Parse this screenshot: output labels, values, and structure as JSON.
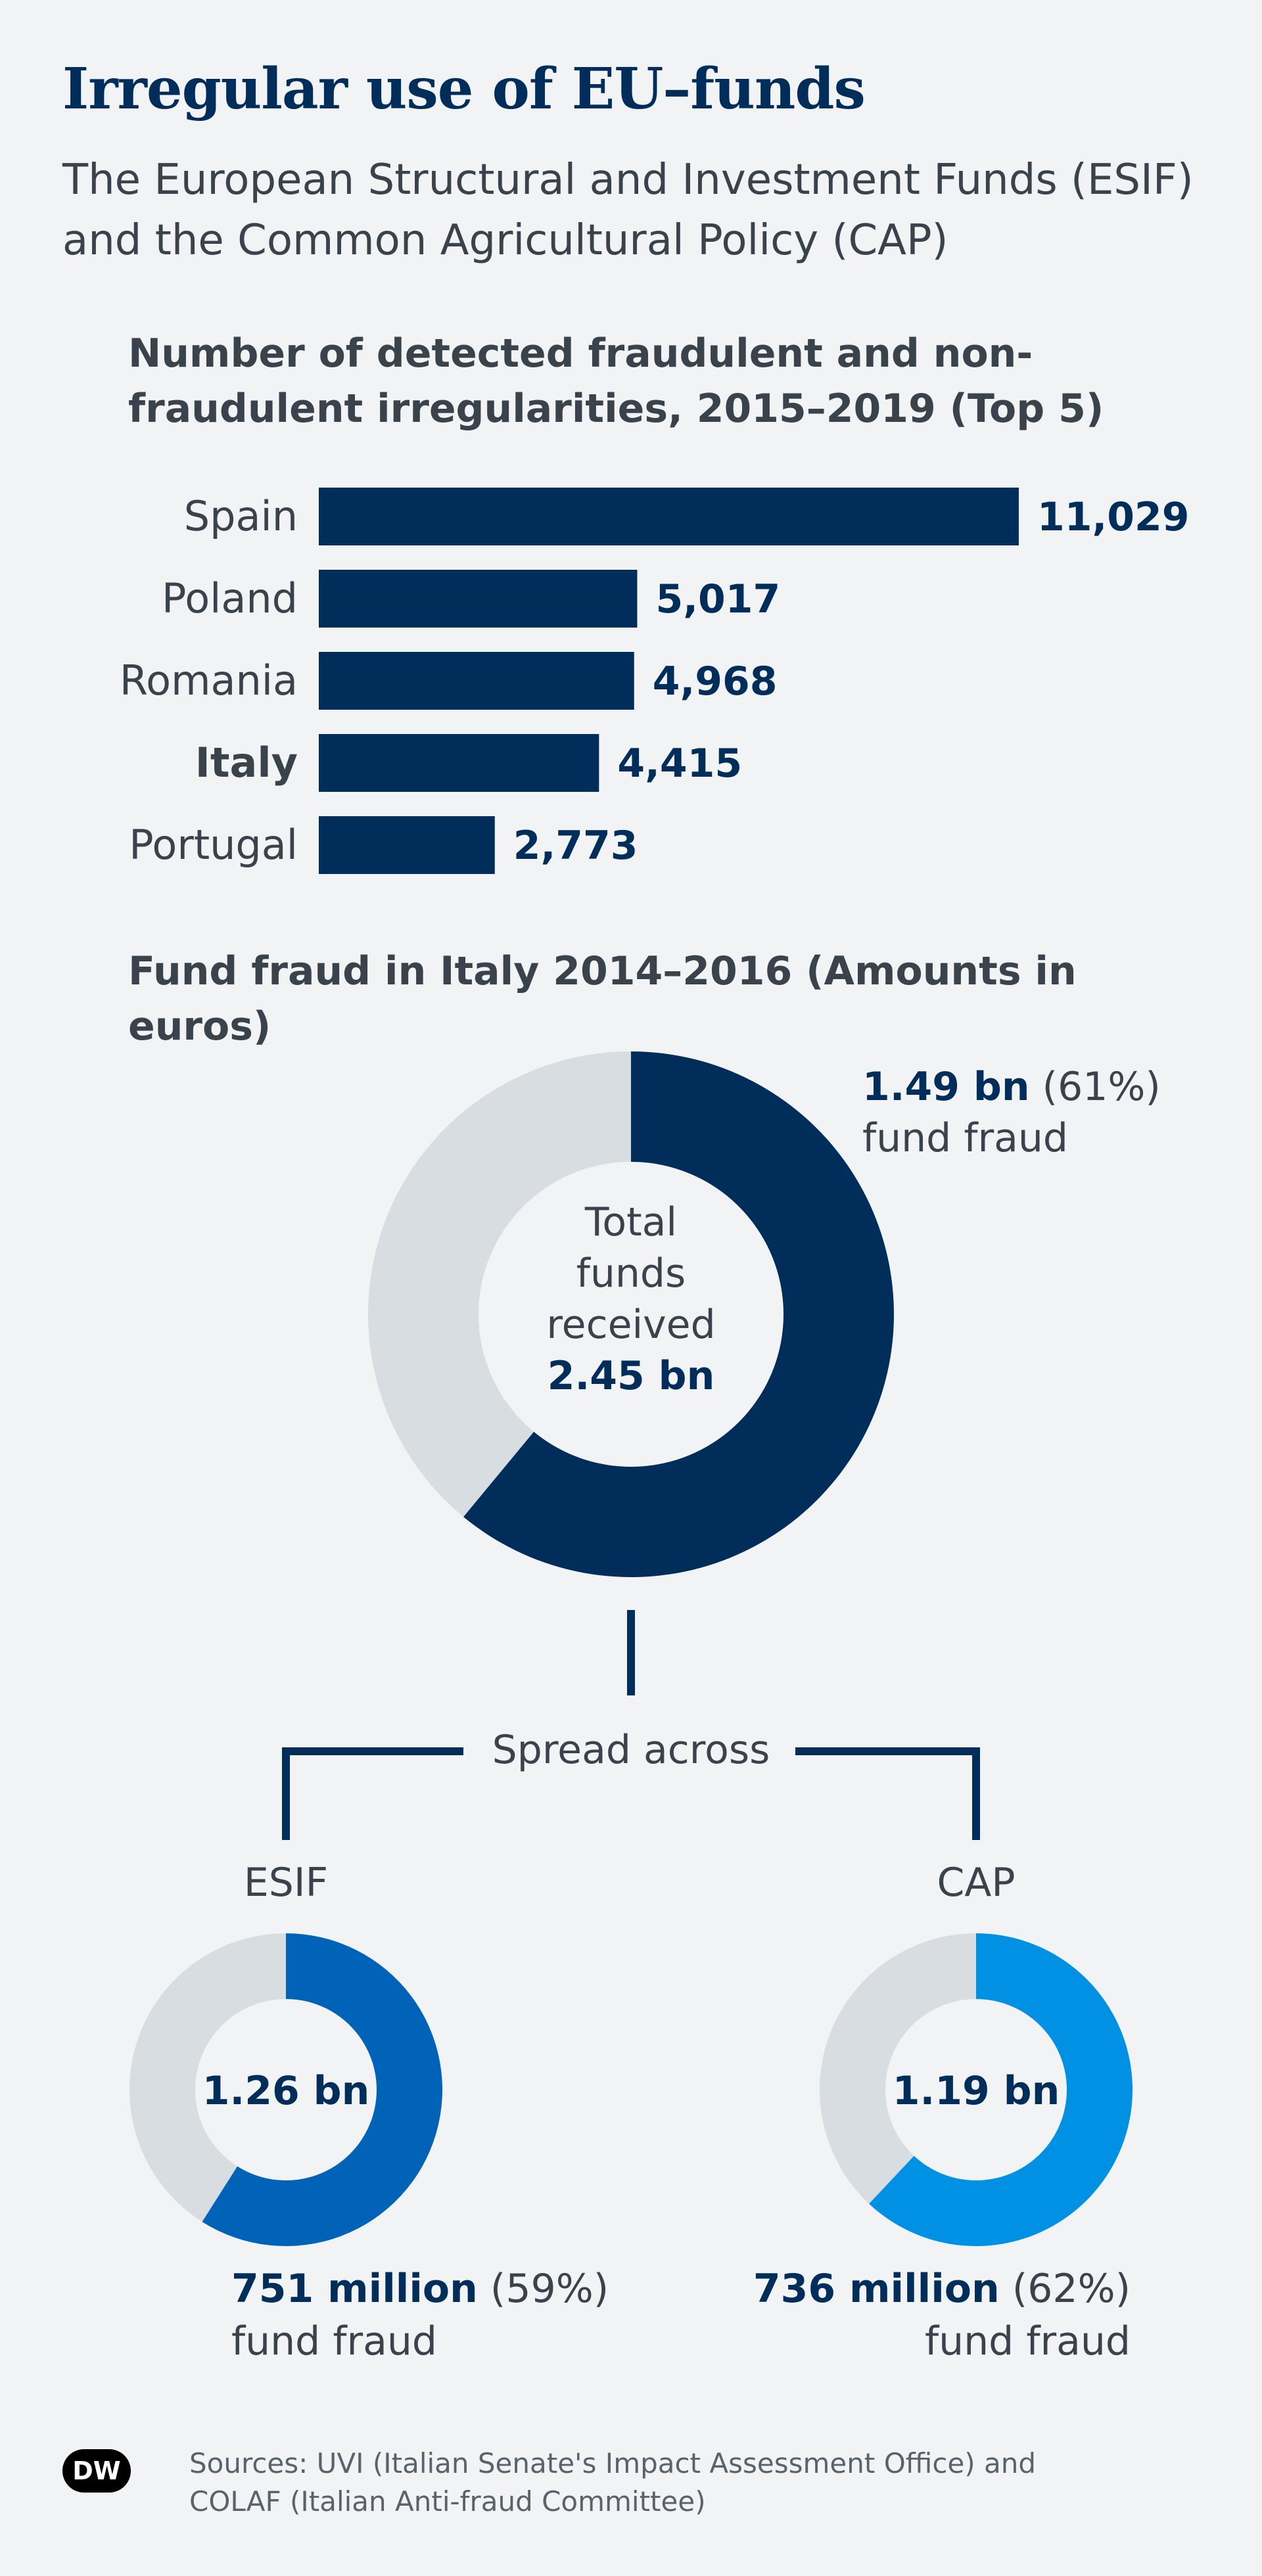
{
  "title": "Irregular use of EU–funds",
  "subtitle": "The European Structural and Investment Funds (ESIF) and the Common Agricultural Policy (CAP)",
  "chart_data": [
    {
      "type": "bar",
      "orientation": "horizontal",
      "title": "Number of detected fraudulent and non-fraudulent irregularities, 2015–2019 (Top 5)",
      "categories": [
        "Spain",
        "Poland",
        "Romania",
        "Italy",
        "Portugal"
      ],
      "values": [
        11029,
        5017,
        4968,
        4415,
        2773
      ],
      "value_labels": [
        "11,029",
        "5,017",
        "4,968",
        "4,415",
        "2,773"
      ],
      "highlighted_category": "Italy",
      "color": "#002d5a"
    },
    {
      "type": "pie",
      "title": "Fund fraud in Italy 2014–2016 (Amounts in euros)",
      "center_lines": [
        "Total",
        "funds",
        "received"
      ],
      "center_value": "2.45 bn",
      "fraud_share": 0.61,
      "fraud_value": "1.49 bn",
      "fraud_pct": "(61%)",
      "fraud_label": "fund fraud",
      "fraud_color": "#002d5a",
      "rest_color": "#d8dde2"
    },
    {
      "type": "pie",
      "name": "ESIF",
      "center_value": "1.26 bn",
      "fraud_share": 0.59,
      "fraud_value": "751 million",
      "fraud_pct": "(59%)",
      "fraud_label": "fund fraud",
      "fraud_color": "#0063b8",
      "rest_color": "#d8dde2"
    },
    {
      "type": "pie",
      "name": "CAP",
      "center_value": "1.19 bn",
      "fraud_share": 0.62,
      "fraud_value": "736 million",
      "fraud_pct": "(62%)",
      "fraud_label": "fund fraud",
      "fraud_color": "#0090e4",
      "rest_color": "#d8dde2"
    }
  ],
  "connector_label": "Spread across",
  "footer": {
    "logo": "DW",
    "sources": "Sources: UVI (Italian Senate's Impact Assessment Office) and COLAF (Italian Anti-fraud Committee)"
  }
}
